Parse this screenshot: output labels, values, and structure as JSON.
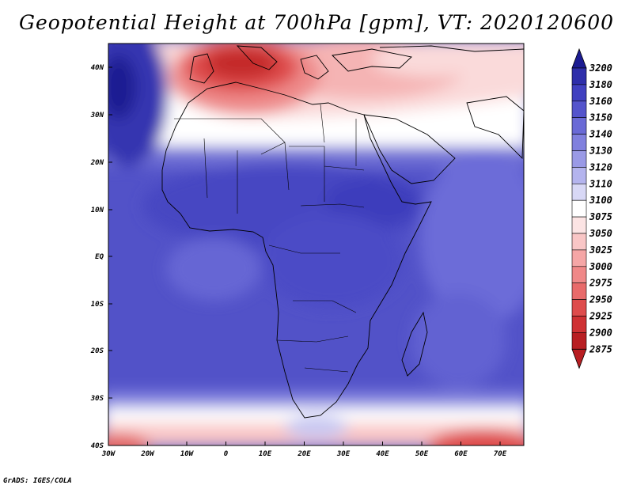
{
  "title": "Geopotential Height at 700hPa [gpm], VT: 2020120600",
  "credit": "GrADS: IGES/COLA",
  "axes": {
    "lat_labels": [
      "40N",
      "30N",
      "20N",
      "10N",
      "EQ",
      "10S",
      "20S",
      "30S",
      "40S"
    ],
    "lon_labels": [
      "30W",
      "20W",
      "10W",
      "0",
      "10E",
      "20E",
      "30E",
      "40E",
      "50E",
      "60E",
      "70E"
    ]
  },
  "colorbar": {
    "levels": [
      "2875",
      "2900",
      "2925",
      "2950",
      "2975",
      "3000",
      "3025",
      "3050",
      "3075",
      "3100",
      "3110",
      "3120",
      "3130",
      "3140",
      "3150",
      "3160",
      "3180",
      "3200"
    ],
    "colors": [
      "#b81e22",
      "#cf3133",
      "#de4c4c",
      "#e86a6a",
      "#f08888",
      "#f5a6a6",
      "#f9c6c6",
      "#fce4e4",
      "#ffffff",
      "#d8d8f6",
      "#b4b4ee",
      "#9a9ae6",
      "#8080de",
      "#6a6ad6",
      "#5454cc",
      "#4040c0",
      "#2e2eaa",
      "#1c1c92"
    ]
  },
  "chart_data": {
    "type": "heatmap",
    "title": "Geopotential Height at 700hPa [gpm], VT: 2020120600",
    "variable": "Geopotential Height at 700hPa",
    "units": "gpm",
    "valid_time": "2020120600",
    "lon_range": [
      -30,
      76
    ],
    "lat_range": [
      -40,
      45
    ],
    "contour_levels": [
      2875,
      2900,
      2925,
      2950,
      2975,
      3000,
      3025,
      3050,
      3075,
      3100,
      3110,
      3120,
      3130,
      3140,
      3150,
      3160,
      3180,
      3200
    ],
    "features": {
      "low_north_mediterranean": "~2900",
      "high_north_atlantic": "~3180",
      "tropical_africa": "3130-3160",
      "low_southern_edge": "~2950"
    }
  }
}
